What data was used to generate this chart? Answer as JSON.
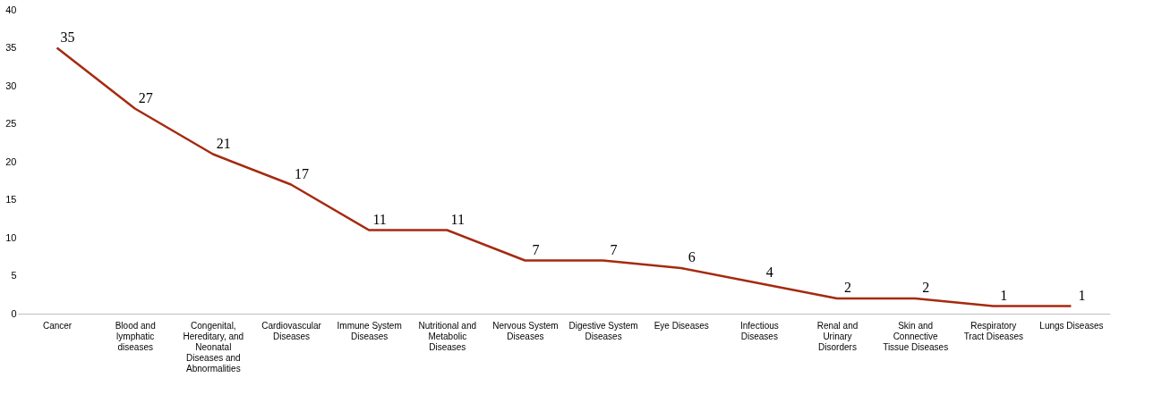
{
  "chart_data": {
    "type": "line",
    "categories": [
      "Cancer",
      "Blood and lymphatic diseases",
      "Congenital, Hereditary, and Neonatal Diseases and Abnormalities",
      "Cardiovascular Diseases",
      "Immune System Diseases",
      "Nutritional and Metabolic Diseases",
      "Nervous System Diseases",
      "Digestive System Diseases",
      "Eye Diseases",
      "Infectious Diseases",
      "Renal and Urinary Disorders",
      "Skin and Connective Tissue Diseases",
      "Respiratory Tract Diseases",
      "Lungs Diseases"
    ],
    "series": [
      {
        "color": "#a52a0f",
        "values": [
          35,
          27,
          21,
          17,
          11,
          11,
          7,
          7,
          6,
          4,
          2,
          2,
          1,
          1
        ]
      }
    ],
    "ylim": [
      0,
      40
    ],
    "yticks": [
      0,
      5,
      10,
      15,
      20,
      25,
      30,
      35,
      40
    ],
    "grid": false,
    "marker": "none",
    "line_style": "solid",
    "data_labels": true
  }
}
